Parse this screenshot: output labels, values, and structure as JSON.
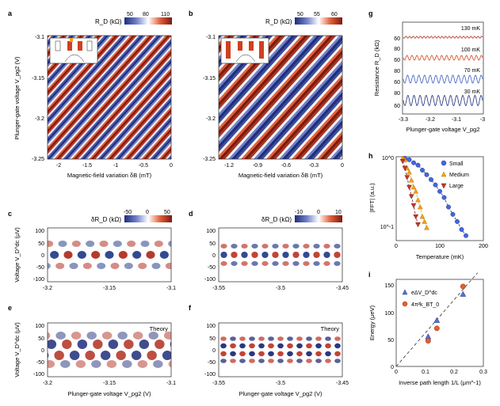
{
  "colors": {
    "red": "#c0392b",
    "blue": "#27408b",
    "white": "#ffffff",
    "orange": "#f3a019",
    "darkred": "#8b1a1a",
    "dot": "#4169e1",
    "axis": "#222222"
  },
  "panels": {
    "a": {
      "letter": "a",
      "cbar_label": "R_D (kΩ)",
      "cbar_ticks": [
        "50",
        "80",
        "110"
      ],
      "yticks": [
        "-3.1",
        "-3.15",
        "-3.2",
        "-3.25"
      ],
      "xticks": [
        "-2",
        "-1.5",
        "-1",
        "-0.5",
        "0"
      ],
      "ylabel": "Plunger-gate voltage V_pg2 (V)",
      "xlabel": "Magnetic-field variation δB (mT)"
    },
    "b": {
      "letter": "b",
      "cbar_label": "R_D (kΩ)",
      "cbar_ticks": [
        "50",
        "55",
        "60"
      ],
      "yticks": [
        "-3.1",
        "-3.15",
        "-3.2",
        "-3.25"
      ],
      "xticks": [
        "-1.2",
        "-0.9",
        "-0.6",
        "-0.3",
        "0"
      ],
      "xlabel": "Magnetic-field variation δB (mT)"
    },
    "c": {
      "letter": "c",
      "cbar_label": "δR_D (kΩ)",
      "cbar_ticks": [
        "-50",
        "0",
        "50"
      ],
      "yticks": [
        "100",
        "50",
        "0",
        "-50",
        "-100"
      ],
      "xticks": [
        "-3.2",
        "-3.15",
        "-3.1"
      ],
      "ylabel": "Voltage V_D^dc (μV)"
    },
    "d": {
      "letter": "d",
      "cbar_label": "δR_D (kΩ)",
      "cbar_ticks": [
        "-10",
        "0",
        "10"
      ],
      "yticks": [
        "100",
        "50",
        "0",
        "-50",
        "-100"
      ],
      "xticks": [
        "-3.55",
        "-3.5",
        "-3.45"
      ]
    },
    "e": {
      "letter": "e",
      "tag": "Theory",
      "yticks": [
        "100",
        "50",
        "0",
        "-50",
        "-100"
      ],
      "xticks": [
        "-3.2",
        "-3.15",
        "-3.1"
      ],
      "ylabel": "Voltage V_D^dc (μV)",
      "xlabel": "Plunger-gate voltage V_pg2 (V)"
    },
    "f": {
      "letter": "f",
      "tag": "Theory",
      "yticks": [
        "100",
        "50",
        "0",
        "-50",
        "-100"
      ],
      "xticks": [
        "-3.55",
        "-3.5",
        "-3.45"
      ],
      "xlabel": "Plunger-gate voltage V_pg2 (V)"
    },
    "g": {
      "letter": "g",
      "ylabel": "Resistance R_D (kΩ)",
      "xlabel": "Plunger-gate voltage V_pg2",
      "xticks": [
        "-3.3",
        "-3.2",
        "-3.1",
        "-3"
      ],
      "traces": [
        {
          "label": "130 mK",
          "ytick": "60"
        },
        {
          "label": "100 mK",
          "ytick": "60"
        },
        {
          "label": "70 mK",
          "ytick": "60"
        },
        {
          "label": "30 mK",
          "ytick": "60"
        }
      ],
      "yticks_top": [
        "80",
        "80",
        "80"
      ]
    },
    "h": {
      "letter": "h",
      "ylabel": "|FFT| (a.u.)",
      "xlabel": "Temperature (mK)",
      "xticks": [
        "0",
        "100",
        "200"
      ],
      "yticks": [
        "10^0",
        "10^-1"
      ]
    },
    "i": {
      "letter": "i",
      "ylabel": "Energy (μeV)",
      "xlabel": "Inverse path length 1/L (μm^-1)",
      "xticks": [
        "0",
        "0.1",
        "0.2",
        "0.3"
      ],
      "yticks": [
        "0",
        "50",
        "100",
        "150"
      ]
    }
  },
  "legend_h": [
    "Small",
    "Medium",
    "Large"
  ],
  "legend_i": [
    "eΔV_D^dc",
    "4π²k_BT_0"
  ],
  "chart_data": [
    {
      "type": "scatter",
      "id": "h",
      "series": [
        {
          "name": "Small",
          "x": [
            20,
            30,
            40,
            50,
            60,
            70,
            80,
            90,
            100,
            110,
            120,
            130,
            140,
            150,
            160
          ],
          "y": [
            1.0,
            0.95,
            0.85,
            0.78,
            0.65,
            0.55,
            0.46,
            0.38,
            0.3,
            0.24,
            0.17,
            0.13,
            0.1,
            0.075,
            0.06
          ]
        },
        {
          "name": "Medium",
          "x": [
            15,
            20,
            25,
            30,
            35,
            40,
            45,
            50,
            55,
            60,
            65,
            70
          ],
          "y": [
            1.0,
            0.95,
            0.7,
            0.6,
            0.45,
            0.35,
            0.3,
            0.22,
            0.17,
            0.12,
            0.1,
            0.08
          ]
        },
        {
          "name": "Large",
          "x": [
            15,
            20,
            25,
            30,
            35,
            40,
            45,
            50
          ],
          "y": [
            0.9,
            0.7,
            0.5,
            0.35,
            0.25,
            0.18,
            0.12,
            0.09
          ]
        }
      ],
      "xlim": [
        0,
        200
      ],
      "ylim": [
        0.05,
        1.0
      ],
      "log_y": true
    },
    {
      "type": "scatter",
      "id": "i",
      "series": [
        {
          "name": "eΔV_D^dc",
          "x": [
            0.11,
            0.14,
            0.23
          ],
          "y": [
            55,
            85,
            133
          ]
        },
        {
          "name": "4π²k_BT_0",
          "x": [
            0.11,
            0.14,
            0.23
          ],
          "y": [
            47,
            70,
            147
          ]
        }
      ],
      "xlim": [
        0,
        0.3
      ],
      "ylim": [
        0,
        160
      ]
    }
  ]
}
